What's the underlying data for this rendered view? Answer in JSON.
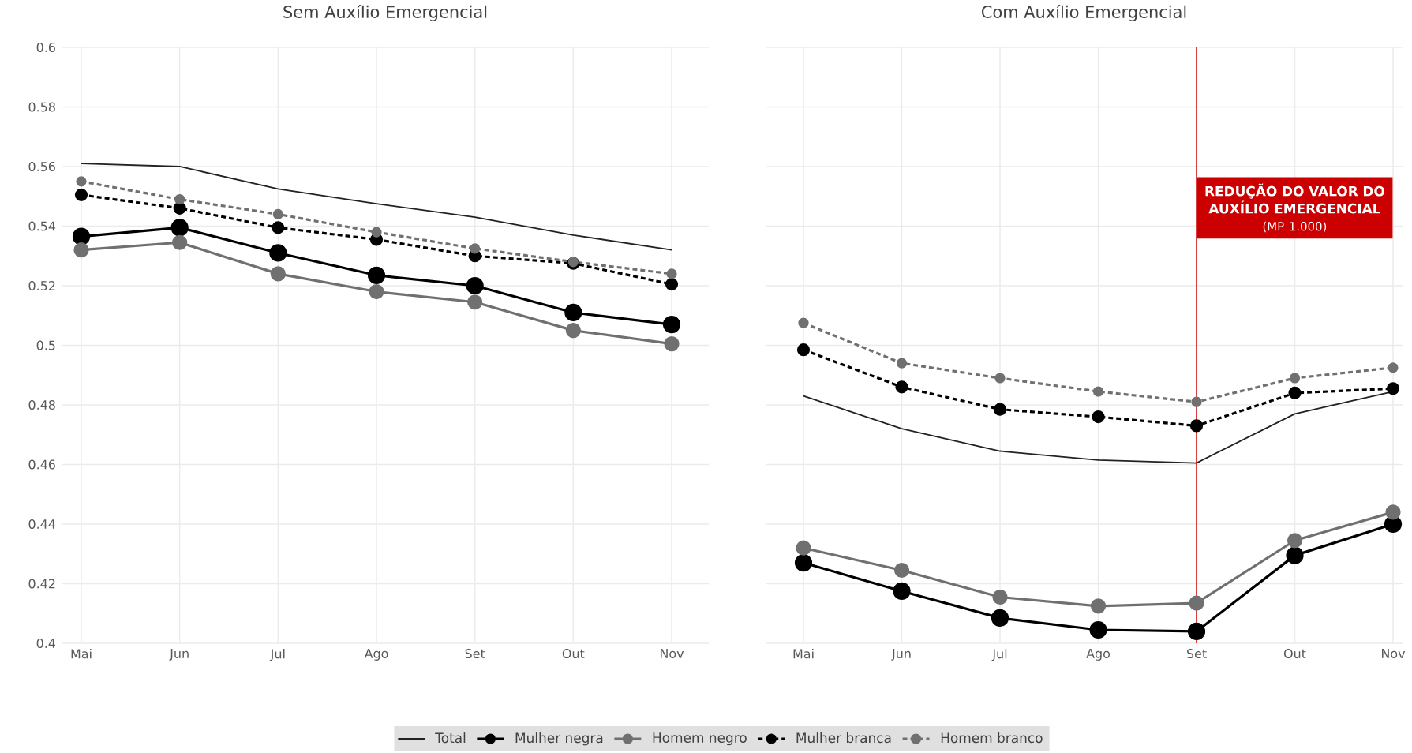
{
  "chart_data": [
    {
      "type": "line",
      "title": "Sem Auxílio Emergencial",
      "categories": [
        "Mai",
        "Jun",
        "Jul",
        "Ago",
        "Set",
        "Out",
        "Nov"
      ],
      "ylim": [
        0.4,
        0.6
      ],
      "yticks": [
        0.4,
        0.42,
        0.44,
        0.46,
        0.48,
        0.5,
        0.52,
        0.54,
        0.56,
        0.58,
        0.6
      ],
      "grid": true,
      "legend": "bottom",
      "series": [
        {
          "name": "Total",
          "color": "#222222",
          "marker": "none",
          "line_style": "solid",
          "values": [
            0.561,
            0.56,
            0.5525,
            0.5475,
            0.543,
            0.537,
            0.532
          ]
        },
        {
          "name": "Mulher negra",
          "color": "#000000",
          "marker": "circle",
          "line_style": "solid",
          "values": [
            0.5365,
            0.5395,
            0.531,
            0.5235,
            0.52,
            0.511,
            0.507
          ]
        },
        {
          "name": "Homem negro",
          "color": "#707070",
          "marker": "circle",
          "line_style": "solid",
          "values": [
            0.532,
            0.5345,
            0.524,
            0.518,
            0.5145,
            0.505,
            0.5005
          ]
        },
        {
          "name": "Mulher branca",
          "color": "#000000",
          "marker": "circle",
          "line_style": "dashed",
          "values": [
            0.5505,
            0.546,
            0.5395,
            0.5355,
            0.53,
            0.5275,
            0.5205
          ]
        },
        {
          "name": "Homem branco",
          "color": "#707070",
          "marker": "circle",
          "line_style": "dashed",
          "values": [
            0.555,
            0.549,
            0.544,
            0.538,
            0.5325,
            0.528,
            0.524
          ]
        }
      ]
    },
    {
      "type": "line",
      "title": "Com Auxílio Emergencial",
      "categories": [
        "Mai",
        "Jun",
        "Jul",
        "Ago",
        "Set",
        "Out",
        "Nov"
      ],
      "ylim": [
        0.4,
        0.6
      ],
      "yticks": [
        0.4,
        0.42,
        0.44,
        0.46,
        0.48,
        0.5,
        0.52,
        0.54,
        0.56,
        0.58,
        0.6
      ],
      "tick_labels": "x",
      "grid": true,
      "ref_lines": [
        {
          "axis": "x",
          "value": "Set",
          "label": "REDUÇÃO DO VALOR DO AUXÍLIO EMERGENCIAL",
          "color": "#cc0000"
        }
      ],
      "annotations": [
        "(MP 1.000)"
      ],
      "series": [
        {
          "color": "#222222",
          "marker": "none",
          "line_style": "solid",
          "values": [
            0.483,
            0.472,
            0.4645,
            0.4615,
            0.4605,
            0.477,
            0.4845
          ]
        },
        {
          "color": "#000000",
          "marker": "circle",
          "line_style": "solid",
          "values": [
            0.427,
            0.4175,
            0.4085,
            0.4045,
            0.404,
            0.4295,
            0.44
          ]
        },
        {
          "color": "#707070",
          "marker": "circle",
          "line_style": "solid",
          "values": [
            0.432,
            0.4245,
            0.4155,
            0.4125,
            0.4135,
            0.4345,
            0.444
          ]
        },
        {
          "color": "#000000",
          "marker": "circle",
          "line_style": "dashed",
          "values": [
            0.4985,
            0.486,
            0.4785,
            0.476,
            0.473,
            0.484,
            0.4855
          ]
        },
        {
          "color": "#707070",
          "marker": "circle",
          "line_style": "dashed",
          "values": [
            0.5075,
            0.494,
            0.489,
            0.4845,
            0.481,
            0.489,
            0.4925
          ]
        }
      ]
    }
  ]
}
